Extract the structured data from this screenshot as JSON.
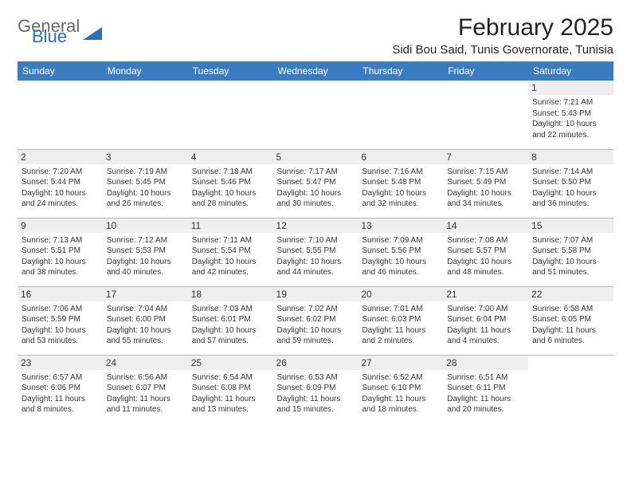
{
  "logo": {
    "line1": "General",
    "line2": "Blue"
  },
  "title": "February 2025",
  "location": "Sidi Bou Said, Tunis Governorate, Tunisia",
  "colors": {
    "header_bg": "#3a7cc0",
    "header_text": "#ffffff",
    "daynum_bg": "#eeeeee",
    "border": "#b8b8b8",
    "logo_gray": "#6a6a6a",
    "logo_blue": "#2b71b8"
  },
  "weekdays": [
    "Sunday",
    "Monday",
    "Tuesday",
    "Wednesday",
    "Thursday",
    "Friday",
    "Saturday"
  ],
  "weeks": [
    [
      null,
      null,
      null,
      null,
      null,
      null,
      {
        "n": "1",
        "sr": "7:21 AM",
        "ss": "5:43 PM",
        "dl": "10 hours and 22 minutes."
      }
    ],
    [
      {
        "n": "2",
        "sr": "7:20 AM",
        "ss": "5:44 PM",
        "dl": "10 hours and 24 minutes."
      },
      {
        "n": "3",
        "sr": "7:19 AM",
        "ss": "5:45 PM",
        "dl": "10 hours and 26 minutes."
      },
      {
        "n": "4",
        "sr": "7:18 AM",
        "ss": "5:46 PM",
        "dl": "10 hours and 28 minutes."
      },
      {
        "n": "5",
        "sr": "7:17 AM",
        "ss": "5:47 PM",
        "dl": "10 hours and 30 minutes."
      },
      {
        "n": "6",
        "sr": "7:16 AM",
        "ss": "5:48 PM",
        "dl": "10 hours and 32 minutes."
      },
      {
        "n": "7",
        "sr": "7:15 AM",
        "ss": "5:49 PM",
        "dl": "10 hours and 34 minutes."
      },
      {
        "n": "8",
        "sr": "7:14 AM",
        "ss": "5:50 PM",
        "dl": "10 hours and 36 minutes."
      }
    ],
    [
      {
        "n": "9",
        "sr": "7:13 AM",
        "ss": "5:51 PM",
        "dl": "10 hours and 38 minutes."
      },
      {
        "n": "10",
        "sr": "7:12 AM",
        "ss": "5:53 PM",
        "dl": "10 hours and 40 minutes."
      },
      {
        "n": "11",
        "sr": "7:11 AM",
        "ss": "5:54 PM",
        "dl": "10 hours and 42 minutes."
      },
      {
        "n": "12",
        "sr": "7:10 AM",
        "ss": "5:55 PM",
        "dl": "10 hours and 44 minutes."
      },
      {
        "n": "13",
        "sr": "7:09 AM",
        "ss": "5:56 PM",
        "dl": "10 hours and 46 minutes."
      },
      {
        "n": "14",
        "sr": "7:08 AM",
        "ss": "5:57 PM",
        "dl": "10 hours and 48 minutes."
      },
      {
        "n": "15",
        "sr": "7:07 AM",
        "ss": "5:58 PM",
        "dl": "10 hours and 51 minutes."
      }
    ],
    [
      {
        "n": "16",
        "sr": "7:06 AM",
        "ss": "5:59 PM",
        "dl": "10 hours and 53 minutes."
      },
      {
        "n": "17",
        "sr": "7:04 AM",
        "ss": "6:00 PM",
        "dl": "10 hours and 55 minutes."
      },
      {
        "n": "18",
        "sr": "7:03 AM",
        "ss": "6:01 PM",
        "dl": "10 hours and 57 minutes."
      },
      {
        "n": "19",
        "sr": "7:02 AM",
        "ss": "6:02 PM",
        "dl": "10 hours and 59 minutes."
      },
      {
        "n": "20",
        "sr": "7:01 AM",
        "ss": "6:03 PM",
        "dl": "11 hours and 2 minutes."
      },
      {
        "n": "21",
        "sr": "7:00 AM",
        "ss": "6:04 PM",
        "dl": "11 hours and 4 minutes."
      },
      {
        "n": "22",
        "sr": "6:58 AM",
        "ss": "6:05 PM",
        "dl": "11 hours and 6 minutes."
      }
    ],
    [
      {
        "n": "23",
        "sr": "6:57 AM",
        "ss": "6:06 PM",
        "dl": "11 hours and 8 minutes."
      },
      {
        "n": "24",
        "sr": "6:56 AM",
        "ss": "6:07 PM",
        "dl": "11 hours and 11 minutes."
      },
      {
        "n": "25",
        "sr": "6:54 AM",
        "ss": "6:08 PM",
        "dl": "11 hours and 13 minutes."
      },
      {
        "n": "26",
        "sr": "6:53 AM",
        "ss": "6:09 PM",
        "dl": "11 hours and 15 minutes."
      },
      {
        "n": "27",
        "sr": "6:52 AM",
        "ss": "6:10 PM",
        "dl": "11 hours and 18 minutes."
      },
      {
        "n": "28",
        "sr": "6:51 AM",
        "ss": "6:11 PM",
        "dl": "11 hours and 20 minutes."
      },
      null
    ]
  ],
  "labels": {
    "sunrise": "Sunrise:",
    "sunset": "Sunset:",
    "daylight": "Daylight:"
  }
}
